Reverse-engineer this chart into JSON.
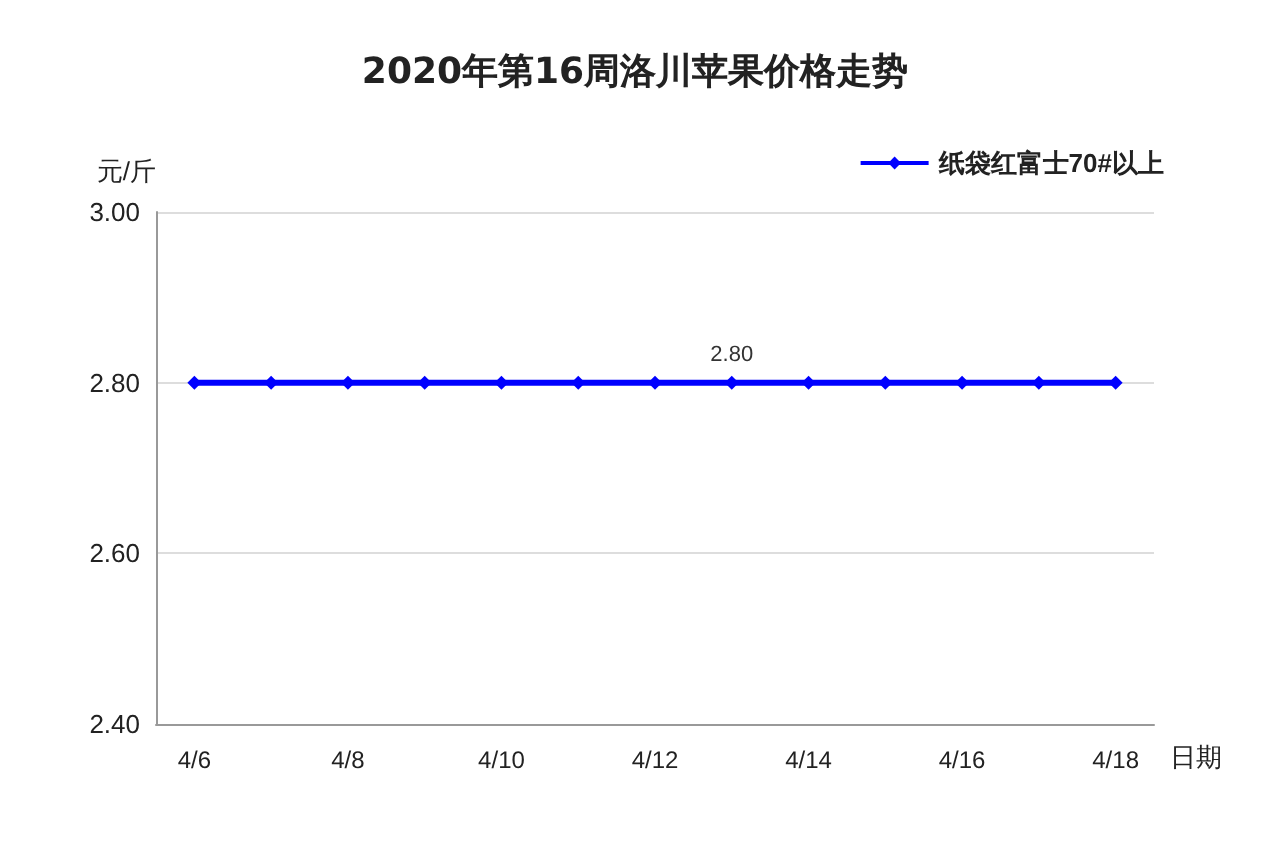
{
  "chart_data": {
    "type": "line",
    "title": "2020年第16周洛川苹果价格走势",
    "xlabel": "日期",
    "ylabel": "元/斤",
    "categories": [
      "4/6",
      null,
      "4/8",
      null,
      "4/10",
      null,
      "4/12",
      null,
      "4/14",
      null,
      "4/16",
      null,
      "4/18"
    ],
    "series": [
      {
        "name": "纸袋红富士70#以上",
        "color": "#0000ff",
        "values": [
          2.8,
          2.8,
          2.8,
          2.8,
          2.8,
          2.8,
          2.8,
          2.8,
          2.8,
          2.8,
          2.8,
          2.8,
          2.8
        ],
        "value_labels": [
          null,
          null,
          null,
          null,
          null,
          null,
          null,
          "2.80",
          null,
          null,
          null,
          null,
          null
        ]
      }
    ],
    "ylim": [
      2.4,
      3.0
    ],
    "yticks": [
      {
        "value": 2.4,
        "label": "2.40"
      },
      {
        "value": 2.6,
        "label": "2.60"
      },
      {
        "value": 2.8,
        "label": "2.80"
      },
      {
        "value": 3.0,
        "label": "3.00"
      }
    ],
    "grid": "y",
    "legend": "top right",
    "marker": "diamond",
    "line_style": "solid"
  }
}
